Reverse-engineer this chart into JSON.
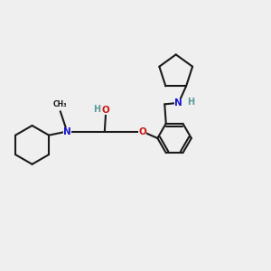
{
  "background_color": "#efefef",
  "bond_color": "#1a1a1a",
  "N_color": "#1515cc",
  "O_color": "#cc1515",
  "H_color": "#5a9a9a",
  "line_width": 1.5,
  "figsize": [
    3.0,
    3.0
  ],
  "dpi": 100,
  "xlim": [
    0.0,
    1.0
  ],
  "ylim": [
    0.1,
    0.9
  ]
}
